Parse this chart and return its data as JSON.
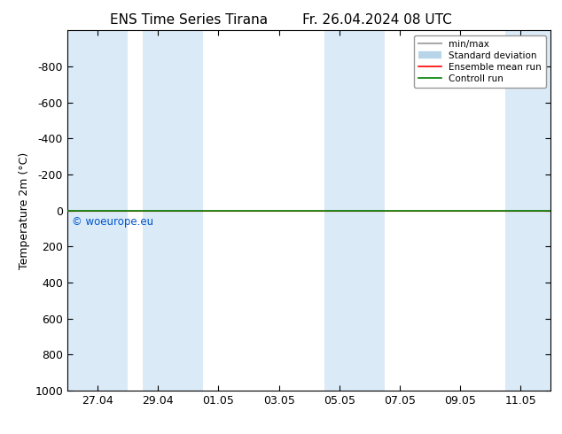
{
  "title_left": "ENS Time Series Tirana",
  "title_right": "Fr. 26.04.2024 08 UTC",
  "ylabel": "Temperature 2m (°C)",
  "ylim": [
    -1000,
    1000
  ],
  "yticks": [
    -800,
    -600,
    -400,
    -200,
    0,
    200,
    400,
    600,
    800,
    1000
  ],
  "x_tick_labels": [
    "27.04",
    "29.04",
    "01.05",
    "03.05",
    "05.05",
    "07.05",
    "09.05",
    "11.05"
  ],
  "copyright_text": "© woeurope.eu",
  "copyright_color": "#0055cc",
  "bg_color": "#ffffff",
  "plot_bg_color": "#ffffff",
  "shaded_band_color": "#daeaf7",
  "ensemble_mean_color": "#ff0000",
  "control_run_color": "#008000",
  "minmax_color": "#aaaaaa",
  "std_color": "#b8d4e8",
  "shaded_ranges": [
    [
      0.0,
      2.0
    ],
    [
      2.5,
      4.5
    ],
    [
      8.5,
      10.5
    ],
    [
      14.5,
      16.0
    ]
  ],
  "x_min": 0.0,
  "x_max": 16.0,
  "tick_positions": [
    1.0,
    3.0,
    5.0,
    7.0,
    9.0,
    11.0,
    13.0,
    15.0
  ]
}
